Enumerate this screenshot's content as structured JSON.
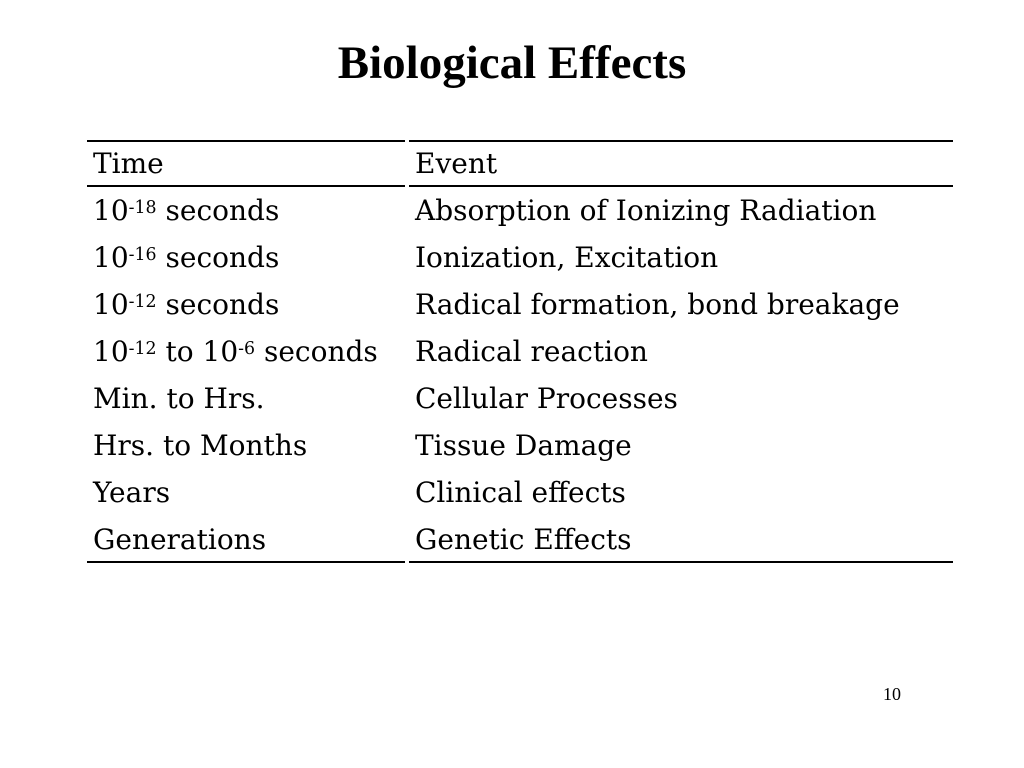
{
  "slide": {
    "title": "Biological Effects",
    "page_number": "10"
  },
  "colors": {
    "background": "#ffffff",
    "text": "#000000",
    "rule": "#000000"
  },
  "table": {
    "col_headers": [
      "Time",
      "Event"
    ],
    "rows": [
      {
        "time": "10^-18 seconds",
        "event": "Absorption of Ionizing Radiation"
      },
      {
        "time": "10^-16 seconds",
        "event": "Ionization, Excitation"
      },
      {
        "time": "10^-12 seconds",
        "event": "Radical formation, bond breakage"
      },
      {
        "time": "10^-12 to 10^-6 seconds",
        "event": "Radical reaction"
      },
      {
        "time": "Min. to Hrs.",
        "event": "Cellular Processes"
      },
      {
        "time": "Hrs. to Months",
        "event": "Tissue Damage"
      },
      {
        "time": "Years",
        "event": "Clinical effects"
      },
      {
        "time": "Generations",
        "event": "Genetic Effects"
      }
    ]
  }
}
